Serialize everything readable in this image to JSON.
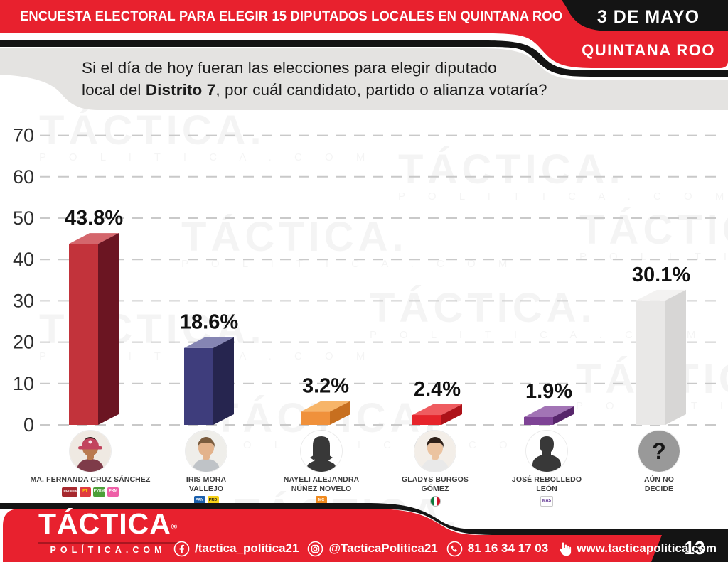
{
  "header": {
    "title": "ENCUESTA ELECTORAL PARA ELEGIR 15 DIPUTADOS LOCALES EN QUINTANA ROO",
    "date": "3 DE MAYO",
    "region": "QUINTANA ROO"
  },
  "question": {
    "line1": "Si el día de hoy fueran las elecciones para elegir diputado",
    "line2_prefix": "local del ",
    "line2_bold": "Distrito 7",
    "line2_suffix": ", por cuál candidato, partido o alianza votaría?"
  },
  "chart_data": {
    "type": "bar",
    "style": "3d-columns",
    "title": "",
    "xlabel": "",
    "ylabel": "",
    "ylim": [
      0,
      70
    ],
    "yticks": [
      0,
      10,
      20,
      30,
      40,
      50,
      60,
      70
    ],
    "grid": "horizontal-dashed",
    "legend": "none",
    "categories": [
      "MA. FERNANDA CRUZ SÁNCHEZ",
      "IRIS MORA VALLEJO",
      "NAYELI ALEJANDRA NÚÑEZ NOVELO",
      "GLADYS BURGOS GÓMEZ",
      "JOSÉ REBOLLEDO LEÓN",
      "AÚN NO DECIDE"
    ],
    "values": [
      43.8,
      18.6,
      3.2,
      2.4,
      1.9,
      30.1
    ],
    "labels": [
      "43.8%",
      "18.6%",
      "3.2%",
      "2.4%",
      "1.9%",
      "30.1%"
    ],
    "bar_colors": [
      {
        "front": "#C2333B",
        "top": "#D4666C",
        "side": "#6B1522"
      },
      {
        "front": "#3E3D7C",
        "top": "#8585B3",
        "side": "#26254F"
      },
      {
        "front": "#F0913B",
        "top": "#F7B569",
        "side": "#C76F1F"
      },
      {
        "front": "#E6242B",
        "top": "#EF5C60",
        "side": "#AD1219"
      },
      {
        "front": "#7E4395",
        "top": "#A274B5",
        "side": "#57266B"
      },
      {
        "front": "#E9E8E7",
        "top": "#F3F2F1",
        "side": "#D7D6D5"
      }
    ]
  },
  "candidates": [
    {
      "name_lines": [
        "MA. FERNANDA CRUZ SÁNCHEZ"
      ],
      "avatar": {
        "type": "photo",
        "skin": "#B97A4F",
        "hair": "#241511",
        "cap": "#C2455E",
        "shirt": "#7E3B49",
        "bg": "#EFE9E2"
      },
      "parties": [
        {
          "party": "MORENA",
          "abbr": "morena",
          "bg": "#A6282E",
          "fg": "#FFFFFF"
        },
        {
          "party": "PT",
          "abbr": "PT",
          "bg": "#DF3B40",
          "fg": "#FFD400"
        },
        {
          "party": "PVEM",
          "abbr": "PVEM",
          "bg": "#4C9F38",
          "fg": "#FFFFFF"
        },
        {
          "party": "FXM",
          "abbr": "FXM",
          "bg": "#EE5FA7",
          "fg": "#FFFFFF"
        }
      ]
    },
    {
      "name_lines": [
        "IRIS MORA",
        "VALLEJO"
      ],
      "avatar": {
        "type": "photo",
        "skin": "#E3B38C",
        "hair": "#7A5C3E",
        "cap": "",
        "shirt": "#BFC3C7",
        "bg": "#EFEeea"
      },
      "parties": [
        {
          "party": "PAN",
          "abbr": "PAN",
          "bg": "#1A5FAC",
          "fg": "#FFFFFF"
        },
        {
          "party": "PRD",
          "abbr": "PRD",
          "bg": "#F7D117",
          "fg": "#1a1a1a"
        }
      ]
    },
    {
      "name_lines": [
        "NAYELI ALEJANDRA",
        "NÚÑEZ NOVELO"
      ],
      "avatar": {
        "type": "silhouette-female",
        "color": "#383838",
        "bg": "#FFFFFF"
      },
      "parties": [
        {
          "party": "MOVIMIENTO CIUDADANO",
          "abbr": "MC",
          "bg": "#F08A1D",
          "fg": "#FFFFFF"
        }
      ]
    },
    {
      "name_lines": [
        "GLADYS BURGOS",
        "GÓMEZ"
      ],
      "avatar": {
        "type": "photo",
        "skin": "#EBC3A0",
        "hair": "#2E2019",
        "cap": "",
        "shirt": "#E9E9E9",
        "bg": "#F3EEE8"
      },
      "parties": [
        {
          "party": "PRI",
          "abbr": "PRI",
          "type": "tricolor",
          "bg": "#FFFFFF",
          "fg": "#0B6623"
        }
      ]
    },
    {
      "name_lines": [
        "JOSÉ REBOLLEDO",
        "LEÓN"
      ],
      "avatar": {
        "type": "silhouette-male",
        "color": "#383838",
        "bg": "#FFFFFF"
      },
      "parties": [
        {
          "party": "MAS",
          "abbr": "MAS",
          "bg": "#FFFFFF",
          "fg": "#5B2D8E",
          "border": "#C9C9C9"
        }
      ]
    },
    {
      "name_lines": [
        "AÚN NO",
        "DECIDE"
      ],
      "avatar": {
        "type": "question",
        "circle": "#999999",
        "mark": "#161616",
        "mark_text": "?"
      },
      "parties": []
    }
  ],
  "footer": {
    "brand": "TÁCTICA",
    "brand_reg": "®",
    "brand_sub": "POLÍTICA.COM",
    "facebook": "/tactica_politica21",
    "instagram": "@TacticaPolitica21",
    "phone": "81 16 34 17 03",
    "website": "www.tacticapolitica.com",
    "page": "13"
  },
  "watermark": {
    "text": "TÁCTICA.",
    "subtext": "P O L I T I C A . C O M"
  },
  "colors": {
    "banner_red": "#E8212E",
    "banner_black": "#141414",
    "panel_gray": "#E4E3E1",
    "grid_gray": "#C9C9C9",
    "footer_red": "#E8212E"
  }
}
